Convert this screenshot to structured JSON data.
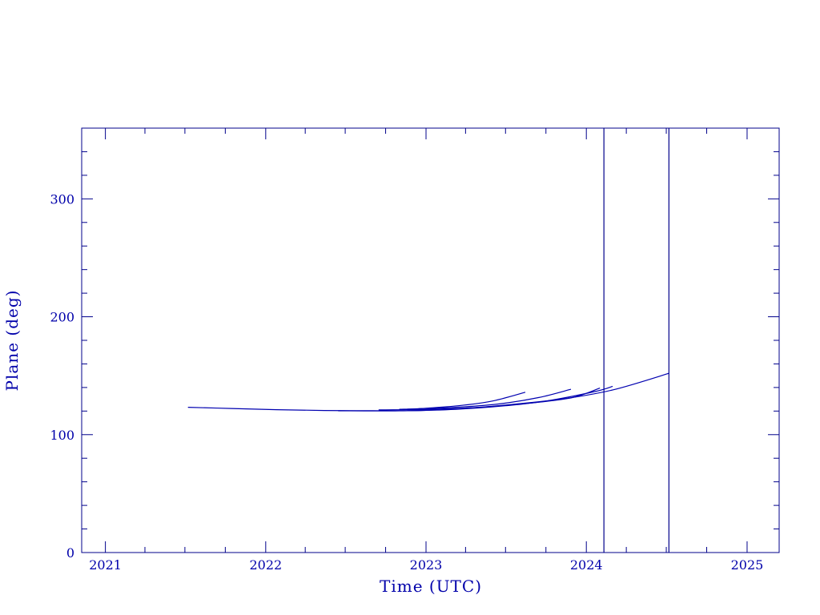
{
  "chart_data": {
    "type": "line",
    "title": "",
    "xlabel": "Time (UTC)",
    "ylabel": "Plane (deg)",
    "xlim": [
      "2020-11-08",
      "2025-03-15"
    ],
    "ylim": [
      0,
      360
    ],
    "x_ticks": [
      "2021",
      "2022",
      "2023",
      "2024",
      "2025"
    ],
    "y_ticks": [
      "0",
      "100",
      "200",
      "300"
    ],
    "grid": false,
    "legend": "none",
    "axis_color": "#00008b",
    "line_color": "#0000b0",
    "vertical_markers": [
      "2024-02-10",
      "2024-07-07"
    ],
    "series": [
      {
        "x": [
          "2021-07-08",
          "2021-10-15",
          "2022-01-26",
          "2022-05-14",
          "2022-09-01",
          "2022-12-20",
          "2023-04-08",
          "2023-07-26",
          "2023-11-13",
          "2024-03-02",
          "2024-07-07"
        ],
        "y": [
          123.2,
          122.2,
          121.2,
          120.5,
          120.3,
          120.5,
          122.5,
          126,
          130.5,
          138,
          152
        ]
      },
      {
        "x": [
          "2022-06-15",
          "2022-11-01",
          "2023-03-10",
          "2023-07-01",
          "2023-10-01",
          "2024-01-20",
          "2024-03-01"
        ],
        "y": [
          120.2,
          120.2,
          121.5,
          124.5,
          128.5,
          136.5,
          141
        ]
      },
      {
        "x": [
          "2022-09-15",
          "2023-01-15",
          "2023-05-15",
          "2023-09-01",
          "2023-12-01",
          "2024-02-01"
        ],
        "y": [
          121,
          121.5,
          123.5,
          127,
          131.5,
          139.5
        ]
      },
      {
        "x": [
          "2022-11-01",
          "2023-03-01",
          "2023-06-15",
          "2023-09-15",
          "2023-11-27"
        ],
        "y": [
          121.5,
          123,
          126,
          131.5,
          138.5
        ]
      },
      {
        "x": [
          "2022-12-15",
          "2023-03-15",
          "2023-06-01",
          "2023-08-15"
        ],
        "y": [
          122,
          124.5,
          128.5,
          136
        ]
      }
    ]
  }
}
